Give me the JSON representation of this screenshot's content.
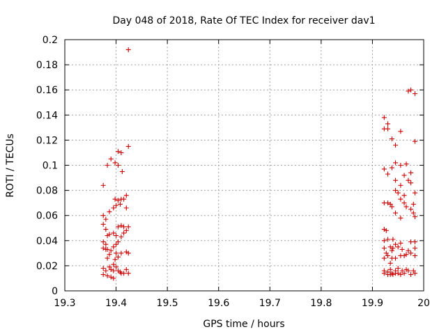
{
  "chart_data": {
    "type": "scatter",
    "title": "Day 048 of 2018, Rate Of TEC Index for receiver dav1",
    "xlabel": "GPS time / hours",
    "ylabel": "ROTI / TECUs",
    "xlim": [
      19.3,
      20.0
    ],
    "ylim": [
      0,
      0.2
    ],
    "xticks": [
      "19.3",
      "19.4",
      "19.5",
      "19.6",
      "19.7",
      "19.8",
      "19.9",
      "20"
    ],
    "yticks": [
      "0",
      "0.02",
      "0.04",
      "0.06",
      "0.08",
      "0.1",
      "0.12",
      "0.14",
      "0.16",
      "0.18",
      "0.2"
    ],
    "grid": true,
    "marker": "+",
    "color": "#cc0000",
    "points": [
      [
        19.375,
        0.084
      ],
      [
        19.375,
        0.06
      ],
      [
        19.375,
        0.053
      ],
      [
        19.375,
        0.039
      ],
      [
        19.375,
        0.034
      ],
      [
        19.375,
        0.018
      ],
      [
        19.375,
        0.013
      ],
      [
        19.38,
        0.057
      ],
      [
        19.38,
        0.049
      ],
      [
        19.38,
        0.037
      ],
      [
        19.38,
        0.033
      ],
      [
        19.38,
        0.016
      ],
      [
        19.383,
        0.1
      ],
      [
        19.383,
        0.044
      ],
      [
        19.383,
        0.033
      ],
      [
        19.383,
        0.026
      ],
      [
        19.383,
        0.012
      ],
      [
        19.387,
        0.063
      ],
      [
        19.387,
        0.045
      ],
      [
        19.387,
        0.029
      ],
      [
        19.387,
        0.019
      ],
      [
        19.39,
        0.105
      ],
      [
        19.39,
        0.032
      ],
      [
        19.39,
        0.017
      ],
      [
        19.39,
        0.011
      ],
      [
        19.395,
        0.066
      ],
      [
        19.395,
        0.046
      ],
      [
        19.395,
        0.035
      ],
      [
        19.395,
        0.021
      ],
      [
        19.395,
        0.016
      ],
      [
        19.395,
        0.01
      ],
      [
        19.398,
        0.102
      ],
      [
        19.398,
        0.073
      ],
      [
        19.398,
        0.025
      ],
      [
        19.4,
        0.068
      ],
      [
        19.4,
        0.044
      ],
      [
        19.4,
        0.037
      ],
      [
        19.4,
        0.03
      ],
      [
        19.4,
        0.019
      ],
      [
        19.404,
        0.111
      ],
      [
        19.404,
        0.1
      ],
      [
        19.404,
        0.072
      ],
      [
        19.404,
        0.051
      ],
      [
        19.404,
        0.039
      ],
      [
        19.404,
        0.027
      ],
      [
        19.404,
        0.016
      ],
      [
        19.408,
        0.069
      ],
      [
        19.408,
        0.015
      ],
      [
        19.41,
        0.11
      ],
      [
        19.41,
        0.073
      ],
      [
        19.41,
        0.052
      ],
      [
        19.41,
        0.043
      ],
      [
        19.41,
        0.03
      ],
      [
        19.41,
        0.014
      ],
      [
        19.412,
        0.095
      ],
      [
        19.415,
        0.073
      ],
      [
        19.415,
        0.051
      ],
      [
        19.415,
        0.046
      ],
      [
        19.415,
        0.014
      ],
      [
        19.42,
        0.076
      ],
      [
        19.42,
        0.066
      ],
      [
        19.42,
        0.048
      ],
      [
        19.42,
        0.031
      ],
      [
        19.42,
        0.017
      ],
      [
        19.424,
        0.192
      ],
      [
        19.424,
        0.115
      ],
      [
        19.424,
        0.051
      ],
      [
        19.424,
        0.03
      ],
      [
        19.424,
        0.014
      ],
      [
        19.923,
        0.138
      ],
      [
        19.923,
        0.129
      ],
      [
        19.923,
        0.097
      ],
      [
        19.923,
        0.07
      ],
      [
        19.923,
        0.049
      ],
      [
        19.923,
        0.04
      ],
      [
        19.923,
        0.034
      ],
      [
        19.923,
        0.026
      ],
      [
        19.923,
        0.016
      ],
      [
        19.923,
        0.014
      ],
      [
        19.927,
        0.048
      ],
      [
        19.927,
        0.03
      ],
      [
        19.93,
        0.133
      ],
      [
        19.93,
        0.129
      ],
      [
        19.93,
        0.093
      ],
      [
        19.93,
        0.07
      ],
      [
        19.93,
        0.041
      ],
      [
        19.93,
        0.028
      ],
      [
        19.93,
        0.015
      ],
      [
        19.93,
        0.013
      ],
      [
        19.935,
        0.069
      ],
      [
        19.935,
        0.035
      ],
      [
        19.935,
        0.022
      ],
      [
        19.935,
        0.017
      ],
      [
        19.935,
        0.013
      ],
      [
        19.938,
        0.121
      ],
      [
        19.938,
        0.098
      ],
      [
        19.938,
        0.067
      ],
      [
        19.938,
        0.032
      ],
      [
        19.938,
        0.026
      ],
      [
        19.938,
        0.014
      ],
      [
        19.94,
        0.041
      ],
      [
        19.94,
        0.034
      ],
      [
        19.94,
        0.013
      ],
      [
        19.945,
        0.116
      ],
      [
        19.945,
        0.102
      ],
      [
        19.945,
        0.088
      ],
      [
        19.945,
        0.08
      ],
      [
        19.945,
        0.062
      ],
      [
        19.945,
        0.037
      ],
      [
        19.945,
        0.026
      ],
      [
        19.945,
        0.016
      ],
      [
        19.945,
        0.014
      ],
      [
        19.95,
        0.078
      ],
      [
        19.95,
        0.035
      ],
      [
        19.95,
        0.018
      ],
      [
        19.95,
        0.014
      ],
      [
        19.955,
        0.127
      ],
      [
        19.955,
        0.1
      ],
      [
        19.955,
        0.084
      ],
      [
        19.955,
        0.073
      ],
      [
        19.955,
        0.058
      ],
      [
        19.955,
        0.038
      ],
      [
        19.955,
        0.028
      ],
      [
        19.955,
        0.013
      ],
      [
        19.958,
        0.033
      ],
      [
        19.958,
        0.016
      ],
      [
        19.962,
        0.092
      ],
      [
        19.962,
        0.076
      ],
      [
        19.962,
        0.07
      ],
      [
        19.962,
        0.028
      ],
      [
        19.962,
        0.014
      ],
      [
        19.966,
        0.101
      ],
      [
        19.966,
        0.067
      ],
      [
        19.966,
        0.029
      ],
      [
        19.966,
        0.017
      ],
      [
        19.97,
        0.159
      ],
      [
        19.97,
        0.088
      ],
      [
        19.97,
        0.032
      ],
      [
        19.97,
        0.016
      ],
      [
        19.975,
        0.16
      ],
      [
        19.975,
        0.094
      ],
      [
        19.975,
        0.086
      ],
      [
        19.975,
        0.065
      ],
      [
        19.975,
        0.039
      ],
      [
        19.975,
        0.03
      ],
      [
        19.975,
        0.013
      ],
      [
        19.98,
        0.069
      ],
      [
        19.98,
        0.062
      ],
      [
        19.98,
        0.016
      ],
      [
        19.983,
        0.157
      ],
      [
        19.983,
        0.119
      ],
      [
        19.983,
        0.078
      ],
      [
        19.983,
        0.059
      ],
      [
        19.983,
        0.039
      ],
      [
        19.983,
        0.034
      ],
      [
        19.983,
        0.028
      ],
      [
        19.983,
        0.014
      ]
    ]
  }
}
